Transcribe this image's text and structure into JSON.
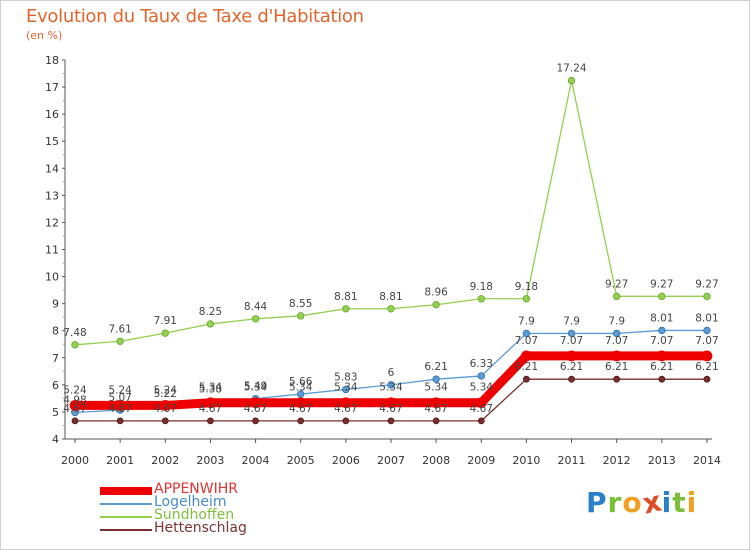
{
  "title": "Evolution du Taux de Taxe d'Habitation",
  "subtitle": "(en %)",
  "logo": {
    "text": "Proxiti",
    "letters": [
      {
        "ch": "P",
        "color": "#2a7fc9"
      },
      {
        "ch": "r",
        "color": "#7bbf3a"
      },
      {
        "ch": "o",
        "color": "#f0a020"
      },
      {
        "ch": "x",
        "color": "#e04a24"
      },
      {
        "ch": "i",
        "color": "#2a7fc9"
      },
      {
        "ch": "t",
        "color": "#7bbf3a"
      },
      {
        "ch": "i",
        "color": "#f0a020"
      }
    ]
  },
  "chart_data": {
    "type": "line",
    "title": "Evolution du Taux de Taxe d'Habitation",
    "ylabel": "(en %)",
    "ylim": [
      4,
      18
    ],
    "yticks": [
      "4",
      "5",
      "6",
      "7",
      "8",
      "9",
      "10",
      "11",
      "12",
      "13",
      "14",
      "15",
      "16",
      "17",
      "18"
    ],
    "categories": [
      "2000",
      "2001",
      "2002",
      "2003",
      "2004",
      "2005",
      "2006",
      "2007",
      "2008",
      "2009",
      "2010",
      "2011",
      "2012",
      "2013",
      "2014"
    ],
    "grid": false,
    "legend_position": "bottom-left",
    "series": [
      {
        "name": "APPENWIHR",
        "color": "#ee0000",
        "values": [
          5.24,
          5.24,
          5.24,
          5.34,
          5.34,
          5.34,
          5.34,
          5.34,
          5.34,
          5.34,
          7.07,
          7.07,
          7.07,
          7.07,
          7.07
        ],
        "labels": [
          "5.24",
          "5.24",
          "5.24",
          "5.34",
          "5.34",
          "5.34",
          "5.34",
          "5.34",
          "5.34",
          "5.34",
          "7.07",
          "7.07",
          "7.07",
          "7.07",
          "7.07"
        ]
      },
      {
        "name": "Logelheim",
        "color": "#5b9bd5",
        "values": [
          4.98,
          5.07,
          5.22,
          5.38,
          5.49,
          5.66,
          5.83,
          6.0,
          6.21,
          6.33,
          7.9,
          7.9,
          7.9,
          8.01,
          8.01
        ],
        "labels": [
          "4.98",
          "5.07",
          "5.22",
          "5.38",
          "5.49",
          "5.66",
          "5.83",
          "6",
          "6.21",
          "6.33",
          "7.9",
          "7.9",
          "7.9",
          "8.01",
          "8.01"
        ]
      },
      {
        "name": "Sundhoffen",
        "color": "#92d050",
        "values": [
          7.48,
          7.61,
          7.91,
          8.25,
          8.44,
          8.55,
          8.81,
          8.81,
          8.96,
          9.18,
          9.18,
          17.24,
          9.27,
          9.27,
          9.27
        ],
        "labels": [
          "7.48",
          "7.61",
          "7.91",
          "8.25",
          "8.44",
          "8.55",
          "8.81",
          "8.81",
          "8.96",
          "9.18",
          "9.18",
          "17.24",
          "9.27",
          "9.27",
          "9.27"
        ]
      },
      {
        "name": "Hettenschlag",
        "color": "#7b2d2d",
        "values": [
          4.67,
          4.67,
          4.67,
          4.67,
          4.67,
          4.67,
          4.67,
          4.67,
          4.67,
          4.67,
          6.21,
          6.21,
          6.21,
          6.21,
          6.21
        ],
        "labels": [
          "4.67",
          "4.67",
          "4.67",
          "4.67",
          "4.67",
          "4.67",
          "4.67",
          "4.67",
          "4.67",
          "4.67",
          "6.21",
          "6.21",
          "6.21",
          "6.21",
          "6.21"
        ]
      }
    ]
  }
}
